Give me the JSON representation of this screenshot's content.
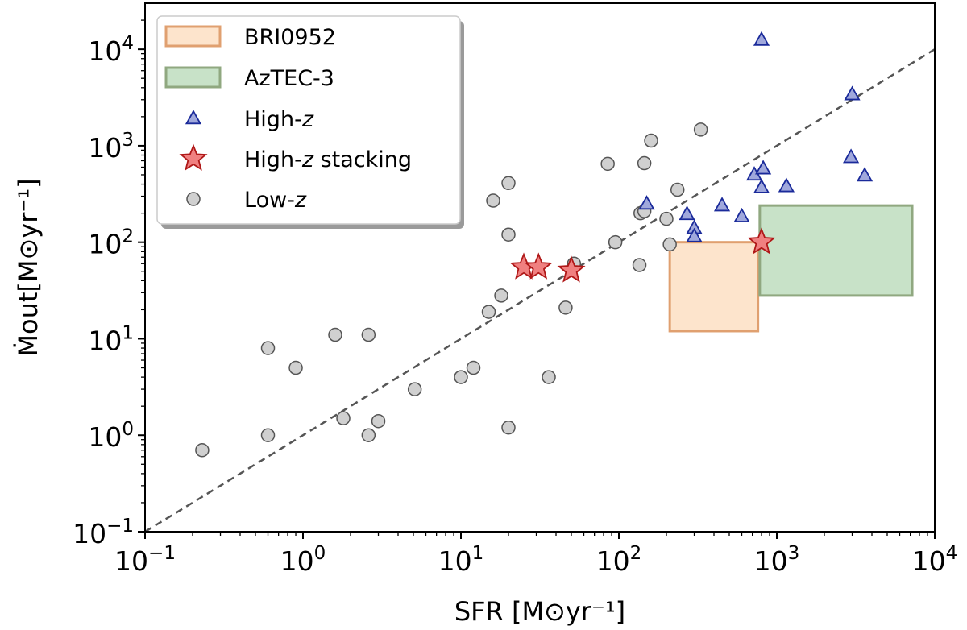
{
  "chart_data": {
    "type": "scatter",
    "xlabel": "SFR [M⊙yr⁻¹]",
    "ylabel": "Ṁout[M⊙yr⁻¹]",
    "xscale": "log",
    "yscale": "log",
    "xlim": [
      0.1,
      10000
    ],
    "ylim": [
      0.1,
      30000
    ],
    "x_ticks": [
      {
        "mantissa": "10",
        "exp": "−1"
      },
      {
        "mantissa": "10",
        "exp": "0"
      },
      {
        "mantissa": "10",
        "exp": "1"
      },
      {
        "mantissa": "10",
        "exp": "2"
      },
      {
        "mantissa": "10",
        "exp": "3"
      },
      {
        "mantissa": "10",
        "exp": "4"
      }
    ],
    "y_ticks": [
      {
        "mantissa": "10",
        "exp": "−1"
      },
      {
        "mantissa": "10",
        "exp": "0"
      },
      {
        "mantissa": "10",
        "exp": "1"
      },
      {
        "mantissa": "10",
        "exp": "2"
      },
      {
        "mantissa": "10",
        "exp": "3"
      },
      {
        "mantissa": "10",
        "exp": "4"
      }
    ],
    "grid": false,
    "legend_position": "top-left",
    "reference_line": {
      "style": "dashed",
      "color": "#555555",
      "x": [
        0.1,
        10000
      ],
      "y": [
        0.1,
        10000
      ]
    },
    "regions": [
      {
        "name": "BRI0952",
        "x_range": [
          210,
          760
        ],
        "y_range": [
          12,
          100
        ],
        "fill": "#fde4cc",
        "stroke": "#e0a070"
      },
      {
        "name": "AzTEC-3",
        "x_range": [
          780,
          7200
        ],
        "y_range": [
          28,
          240
        ],
        "fill": "#c8e2c8",
        "stroke": "#90a880"
      }
    ],
    "series": [
      {
        "name": "High-z",
        "marker": "triangle",
        "color": "#a0a8dc",
        "edge": "#1a2a9a",
        "points": [
          [
            800,
            12500
          ],
          [
            3000,
            3400
          ],
          [
            2950,
            760
          ],
          [
            3600,
            490
          ],
          [
            720,
            500
          ],
          [
            820,
            580
          ],
          [
            800,
            370
          ],
          [
            1150,
            380
          ],
          [
            150,
            250
          ],
          [
            450,
            240
          ],
          [
            600,
            185
          ],
          [
            270,
            195
          ],
          [
            300,
            140
          ],
          [
            300,
            115
          ]
        ]
      },
      {
        "name": "High-z stacking",
        "marker": "star",
        "color": "#f08080",
        "edge": "#b01818",
        "points": [
          [
            25,
            55
          ],
          [
            31,
            55
          ],
          [
            50,
            51
          ],
          [
            800,
            100
          ]
        ]
      },
      {
        "name": "Low-z",
        "marker": "circle",
        "color": "#d0d0d0",
        "edge": "#555555",
        "points": [
          [
            0.23,
            0.7
          ],
          [
            0.6,
            8
          ],
          [
            0.6,
            1.0
          ],
          [
            0.9,
            5
          ],
          [
            1.6,
            11
          ],
          [
            1.8,
            1.5
          ],
          [
            2.6,
            11
          ],
          [
            2.6,
            1.0
          ],
          [
            3.0,
            1.4
          ],
          [
            5.1,
            3.0
          ],
          [
            10,
            4
          ],
          [
            12,
            5
          ],
          [
            15,
            19
          ],
          [
            16,
            270
          ],
          [
            18,
            28
          ],
          [
            20,
            410
          ],
          [
            20,
            120
          ],
          [
            20,
            1.2
          ],
          [
            36,
            4
          ],
          [
            46,
            21
          ],
          [
            52,
            60
          ],
          [
            85,
            650
          ],
          [
            95,
            100
          ],
          [
            135,
            58
          ],
          [
            137,
            200
          ],
          [
            145,
            210
          ],
          [
            145,
            660
          ],
          [
            160,
            1130
          ],
          [
            200,
            175
          ],
          [
            210,
            95
          ],
          [
            235,
            350
          ],
          [
            330,
            1470
          ]
        ]
      }
    ]
  }
}
